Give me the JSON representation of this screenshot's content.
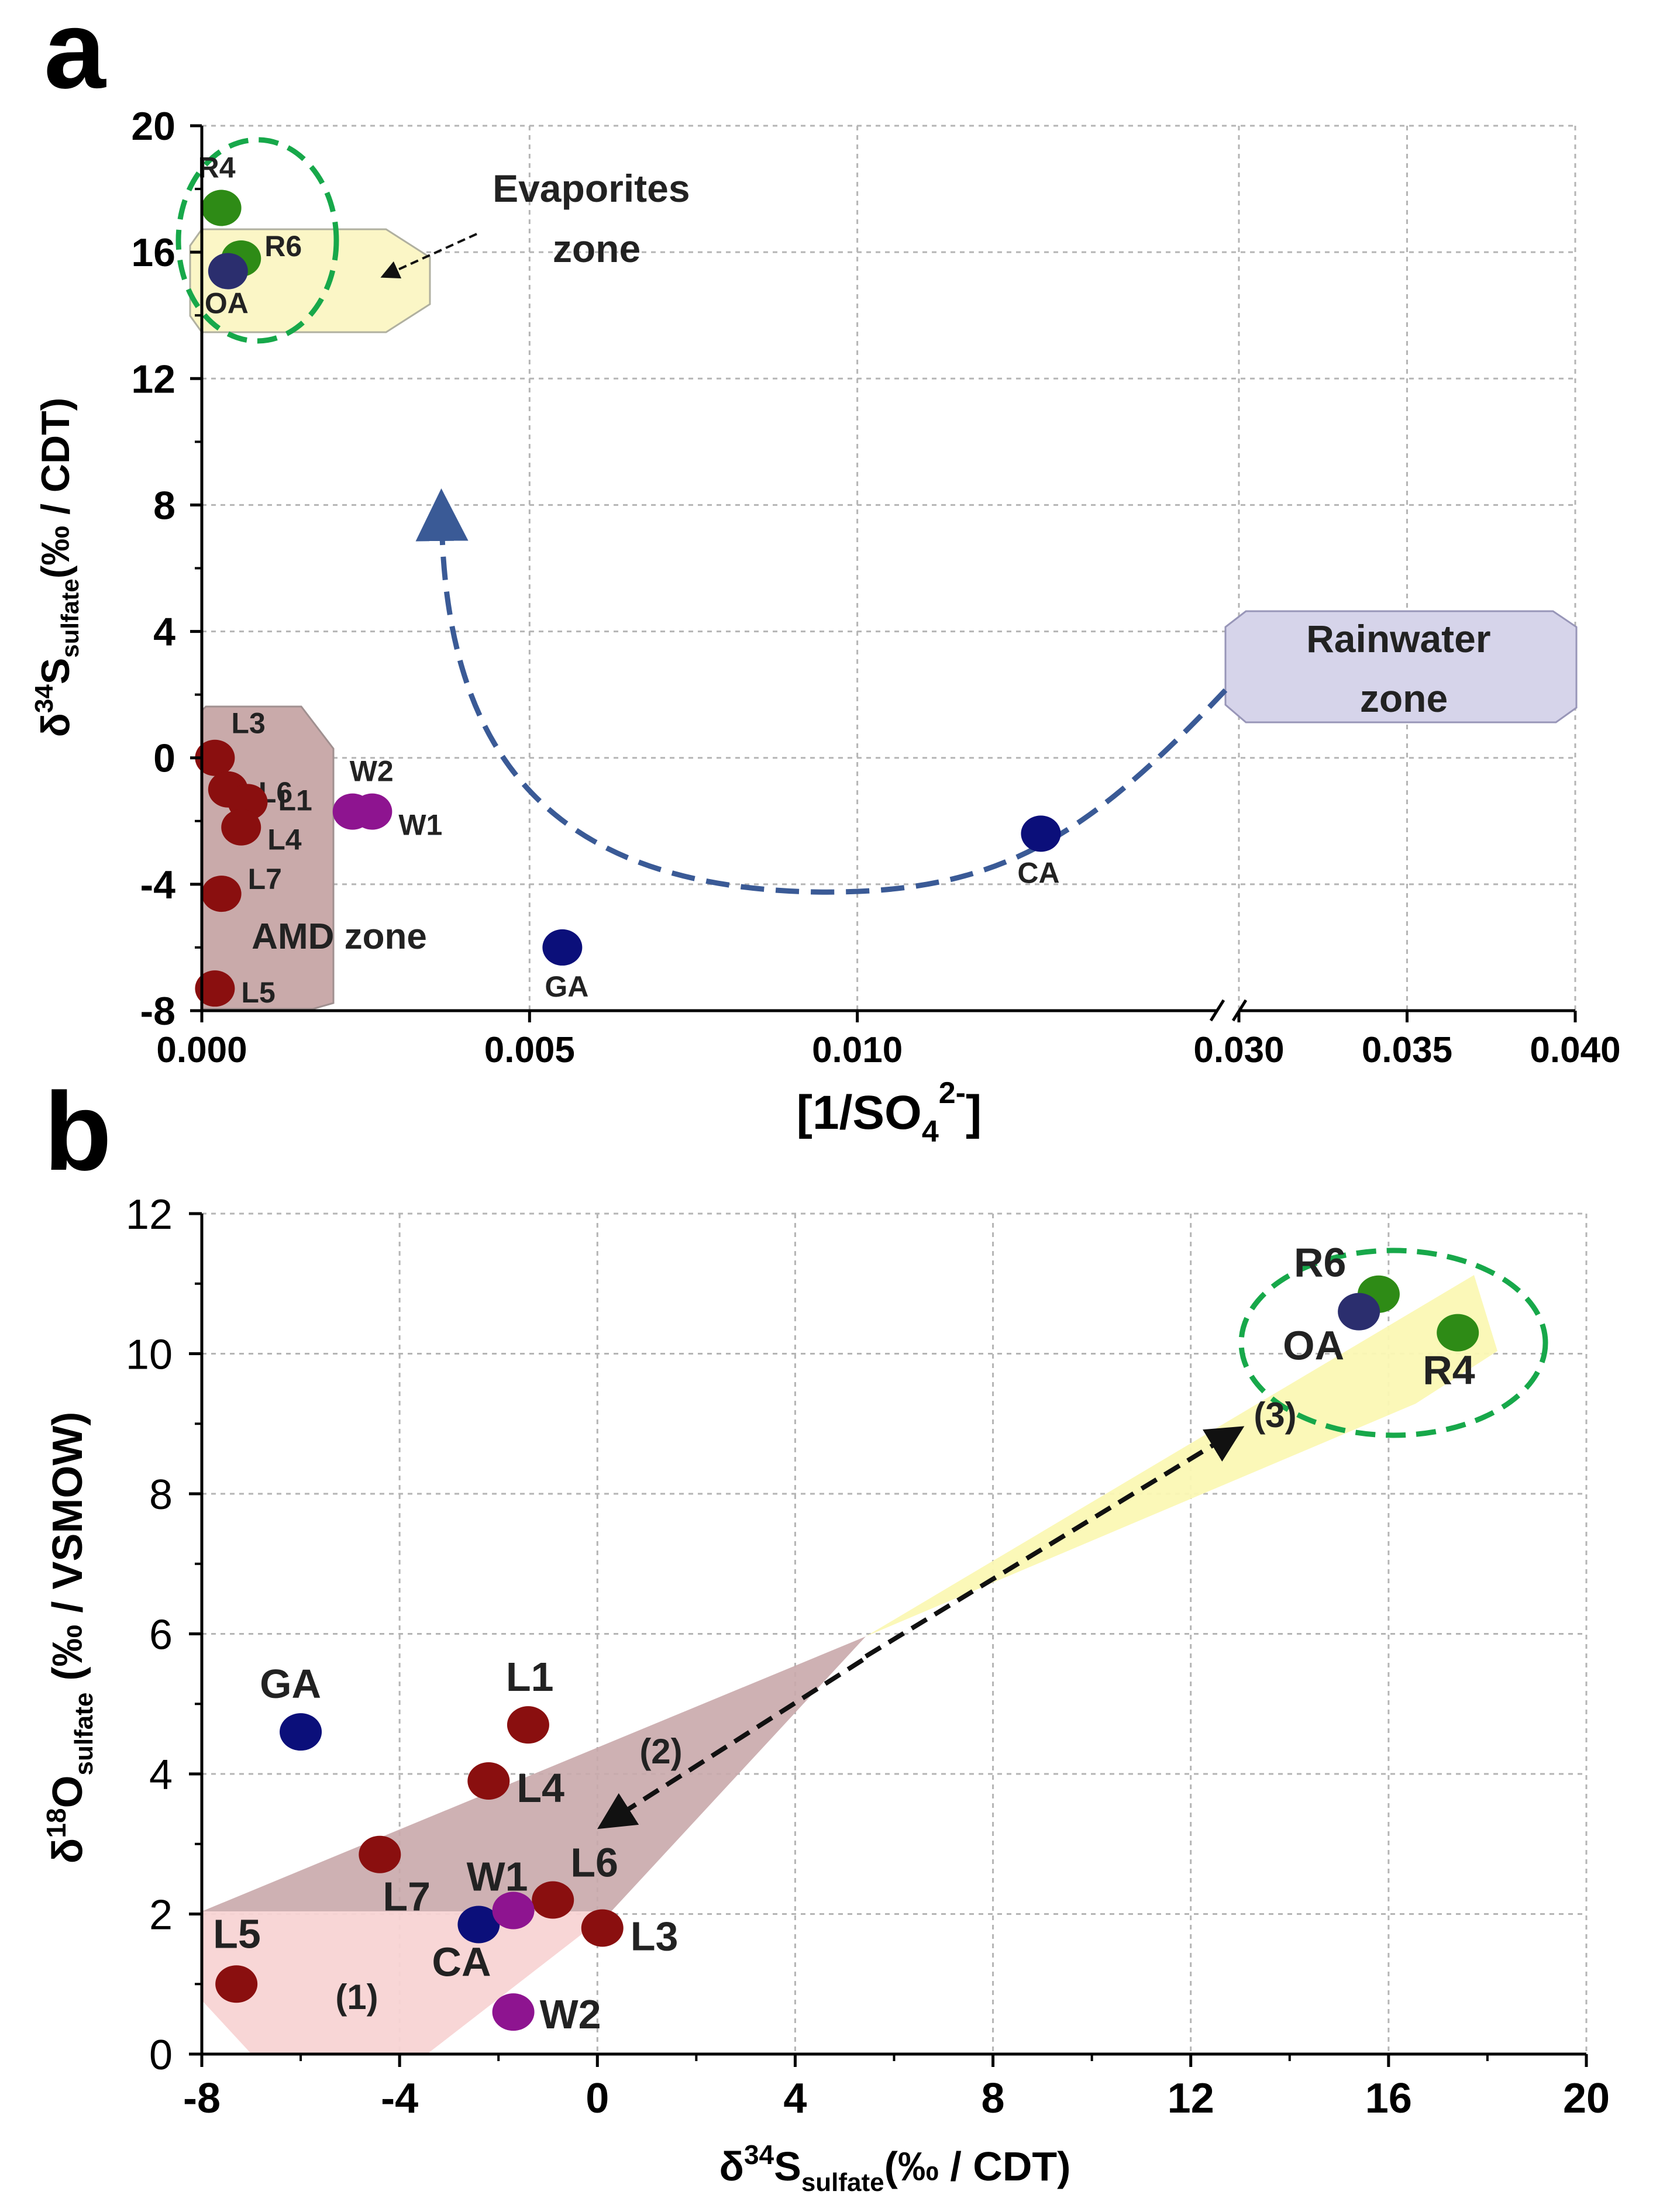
{
  "chart_data": [
    {
      "panel_letter": "a",
      "type": "scatter",
      "xlabel_main": "[1/SO",
      "xlabel_sub": "4",
      "xlabel_sup": "2-",
      "xlabel_end": "]",
      "ylabel_main": "δ",
      "ylabel_sup": "34",
      "ylabel_s": "S",
      "ylabel_sub": "sulfate",
      "ylabel_end": "(‰ / CDT)",
      "ylim": [
        -8,
        20
      ],
      "yticks": [
        "-8",
        "-4",
        "0",
        "4",
        "8",
        "12",
        "16",
        "20"
      ],
      "xlim_segment1": [
        0,
        0.0155
      ],
      "xlim_segment2": [
        0.03,
        0.04
      ],
      "xticks": [
        "0.000",
        "0.005",
        "0.010",
        "0.030",
        "0.035",
        "0.040"
      ],
      "points": [
        {
          "label": "R4",
          "x": 0.0003,
          "y": 17.4,
          "group": "river"
        },
        {
          "label": "R6",
          "x": 0.0006,
          "y": 15.8,
          "group": "river"
        },
        {
          "label": "OA",
          "x": 0.0004,
          "y": 15.4,
          "group": "outlet"
        },
        {
          "label": "L3",
          "x": 0.0002,
          "y": 0.0,
          "group": "leachate"
        },
        {
          "label": "L6",
          "x": 0.0004,
          "y": -1.0,
          "group": "leachate"
        },
        {
          "label": "L1",
          "x": 0.0007,
          "y": -1.4,
          "group": "leachate"
        },
        {
          "label": "L4",
          "x": 0.0006,
          "y": -2.2,
          "group": "leachate"
        },
        {
          "label": "L7",
          "x": 0.0003,
          "y": -4.3,
          "group": "leachate"
        },
        {
          "label": "L5",
          "x": 0.0002,
          "y": -7.3,
          "group": "leachate"
        },
        {
          "label": "W2",
          "x": 0.0023,
          "y": -1.7,
          "group": "wetland"
        },
        {
          "label": "W1",
          "x": 0.0026,
          "y": -1.7,
          "group": "wetland"
        },
        {
          "label": "GA",
          "x": 0.0055,
          "y": -6.0,
          "group": "groundwater"
        },
        {
          "label": "CA",
          "x": 0.0128,
          "y": -2.4,
          "group": "groundwater"
        }
      ],
      "annotations": {
        "evaporites_line1": "Evaporites",
        "evaporites_line2": "zone",
        "rainwater_line1": "Rainwater",
        "rainwater_line2": "zone",
        "amd": "AMD zone"
      }
    },
    {
      "panel_letter": "b",
      "type": "scatter",
      "xlabel_main": "δ",
      "xlabel_sup": "34",
      "xlabel_s": "S",
      "xlabel_sub": "sulfate",
      "xlabel_end": "(‰ / CDT)",
      "ylabel_main": "δ",
      "ylabel_sup": "18",
      "ylabel_s": "O",
      "ylabel_sub": "sulfate",
      "ylabel_end": " (‰ / VSMOW)",
      "xlim": [
        -8,
        20
      ],
      "ylim": [
        0,
        12
      ],
      "xticks": [
        "-8",
        "-4",
        "0",
        "4",
        "8",
        "12",
        "16",
        "20"
      ],
      "yticks": [
        "0",
        "2",
        "4",
        "6",
        "8",
        "10",
        "12"
      ],
      "points": [
        {
          "label": "R6",
          "x": 15.8,
          "y": 10.85,
          "group": "river"
        },
        {
          "label": "R4",
          "x": 17.4,
          "y": 10.3,
          "group": "river"
        },
        {
          "label": "OA",
          "x": 15.4,
          "y": 10.6,
          "group": "outlet"
        },
        {
          "label": "GA",
          "x": -6.0,
          "y": 4.6,
          "group": "groundwater"
        },
        {
          "label": "CA",
          "x": -2.4,
          "y": 1.85,
          "group": "groundwater"
        },
        {
          "label": "L1",
          "x": -1.4,
          "y": 4.7,
          "group": "leachate"
        },
        {
          "label": "L4",
          "x": -2.2,
          "y": 3.9,
          "group": "leachate"
        },
        {
          "label": "L7",
          "x": -4.4,
          "y": 2.85,
          "group": "leachate"
        },
        {
          "label": "L6",
          "x": -0.9,
          "y": 2.2,
          "group": "leachate"
        },
        {
          "label": "L3",
          "x": 0.1,
          "y": 1.8,
          "group": "leachate"
        },
        {
          "label": "L5",
          "x": -7.3,
          "y": 1.0,
          "group": "leachate"
        },
        {
          "label": "W1",
          "x": -1.7,
          "y": 2.05,
          "group": "wetland"
        },
        {
          "label": "W2",
          "x": -1.7,
          "y": 0.6,
          "group": "wetland"
        }
      ],
      "annotations": {
        "process_1": "(1)",
        "process_2": "(2)",
        "process_3": "(3)"
      }
    }
  ],
  "colors": {
    "river": "#2e8b16",
    "outlet": "#2b2e6e",
    "leachate": "#8a0f0f",
    "wetland": "#8e1490",
    "groundwater": "#0b0f7a",
    "evaporite_zone": "#fbf6c6",
    "rainwater_zone": "#d6d4ea",
    "amd_zone": "#c9aaaa",
    "dashed_green": "#17a84a",
    "dashed_blue": "#3a5a96"
  }
}
